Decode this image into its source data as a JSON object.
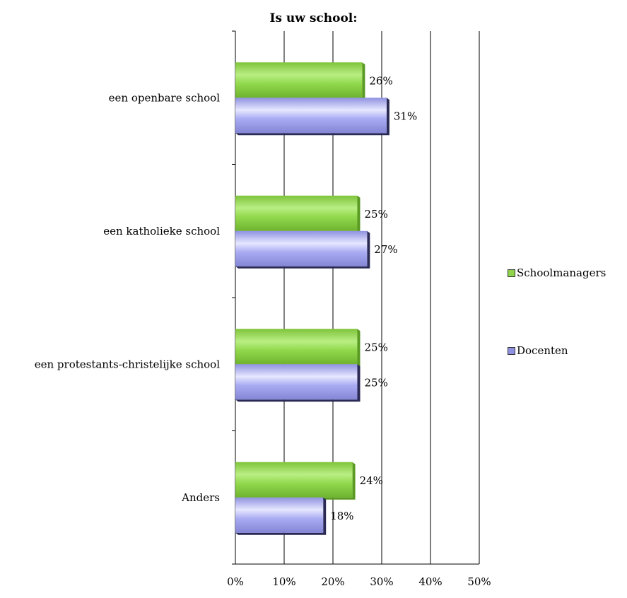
{
  "chart_data": {
    "type": "bar",
    "orientation": "horizontal",
    "title": "Is uw school:",
    "categories": [
      "een openbare school",
      "een katholieke school",
      "een protestants-christelijke school",
      "Anders"
    ],
    "series": [
      {
        "name": "Schoolmanagers",
        "values": [
          26,
          25,
          25,
          24
        ],
        "labels": [
          "26%",
          "25%",
          "25%",
          "24%"
        ],
        "color": "#8fd44a"
      },
      {
        "name": "Docenten",
        "values": [
          31,
          27,
          25,
          18
        ],
        "labels": [
          "31%",
          "27%",
          "25%",
          "18%"
        ],
        "color": "#a7a9f0"
      }
    ],
    "xlim": [
      0,
      50
    ],
    "x_ticks": [
      "0%",
      "10%",
      "20%",
      "30%",
      "40%",
      "50%"
    ],
    "grid": "vertical",
    "legend": "right"
  }
}
